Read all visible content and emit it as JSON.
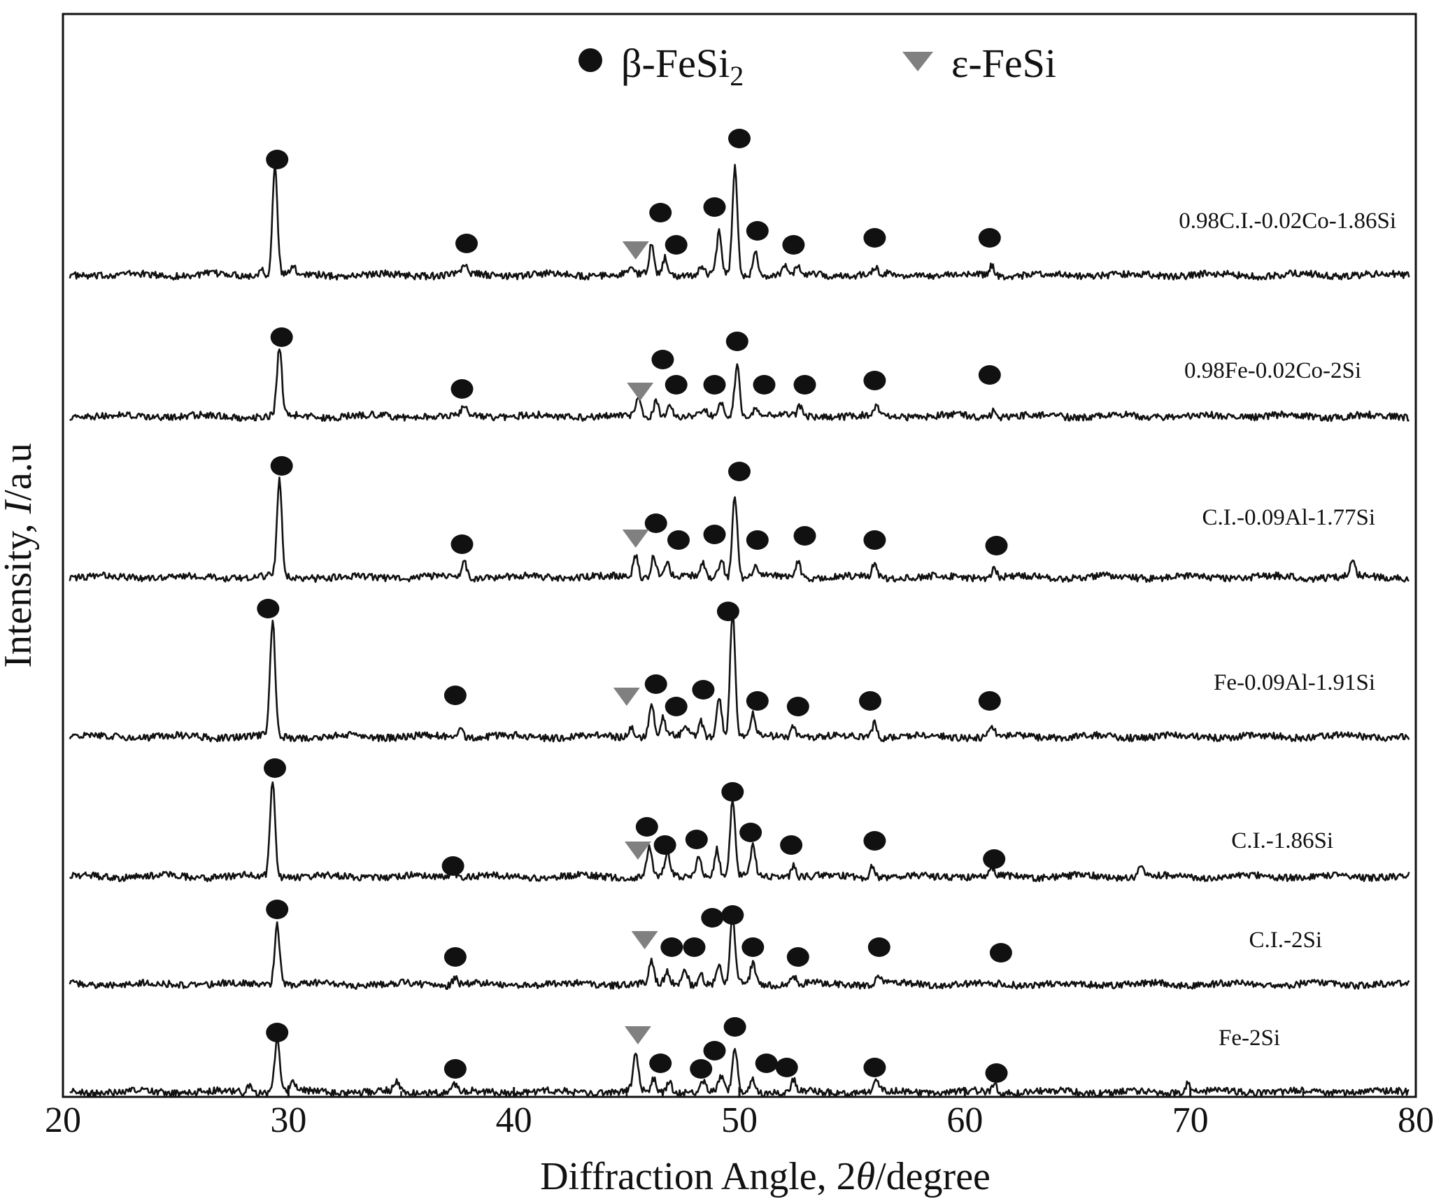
{
  "chart_data": {
    "type": "line",
    "xlabel": {
      "prefix": "Diffraction Angle, 2",
      "symbol": "θ",
      "suffix": "/degree"
    },
    "ylabel": {
      "prefix": "Intensity, ",
      "symbol": "I",
      "suffix": "/a.u"
    },
    "xlim": [
      20,
      80
    ],
    "xticks": [
      "20",
      "30",
      "40",
      "50",
      "60",
      "70",
      "80"
    ],
    "grid": false,
    "y_tick_labels_shown": false,
    "legend": {
      "placement": "top-center",
      "entries": [
        {
          "label": "β-FeSi",
          "subscript": "2",
          "marker": "circle",
          "color": "#111111"
        },
        {
          "label": "ε-FeSi",
          "subscript": "",
          "marker": "triangle-down",
          "color": "#808080"
        }
      ]
    },
    "series": [
      {
        "name": "0.98C.I.-0.02Co-1.86Si",
        "peaks": [
          {
            "x": 28.8,
            "h": 12
          },
          {
            "x": 29.4,
            "h": 156
          },
          {
            "x": 30.2,
            "h": 10
          },
          {
            "x": 37.8,
            "h": 14
          },
          {
            "x": 45.2,
            "h": 8
          },
          {
            "x": 46.1,
            "h": 42
          },
          {
            "x": 46.7,
            "h": 26
          },
          {
            "x": 48.3,
            "h": 12
          },
          {
            "x": 49.1,
            "h": 60
          },
          {
            "x": 49.8,
            "h": 154
          },
          {
            "x": 50.7,
            "h": 34
          },
          {
            "x": 52.0,
            "h": 12
          },
          {
            "x": 52.6,
            "h": 10
          },
          {
            "x": 56.0,
            "h": 10
          },
          {
            "x": 61.2,
            "h": 14
          }
        ],
        "beta_markers": [
          {
            "x": 29.5,
            "h": 168
          },
          {
            "x": 37.9,
            "h": 48
          },
          {
            "x": 46.5,
            "h": 92
          },
          {
            "x": 47.2,
            "h": 46
          },
          {
            "x": 48.9,
            "h": 100
          },
          {
            "x": 50.0,
            "h": 198
          },
          {
            "x": 50.8,
            "h": 66
          },
          {
            "x": 52.4,
            "h": 46
          },
          {
            "x": 56.0,
            "h": 56
          },
          {
            "x": 61.1,
            "h": 56
          }
        ],
        "epsilon_markers": [
          {
            "x": 45.4,
            "h": 38
          }
        ]
      },
      {
        "name": "0.98Fe-0.02Co-2Si",
        "peaks": [
          {
            "x": 29.6,
            "h": 96
          },
          {
            "x": 37.8,
            "h": 12
          },
          {
            "x": 45.5,
            "h": 28
          },
          {
            "x": 46.3,
            "h": 22
          },
          {
            "x": 46.9,
            "h": 18
          },
          {
            "x": 48.4,
            "h": 10
          },
          {
            "x": 49.2,
            "h": 18
          },
          {
            "x": 49.9,
            "h": 76
          },
          {
            "x": 50.7,
            "h": 12
          },
          {
            "x": 52.7,
            "h": 14
          },
          {
            "x": 56.1,
            "h": 12
          },
          {
            "x": 61.3,
            "h": 10
          }
        ],
        "beta_markers": [
          {
            "x": 29.7,
            "h": 116
          },
          {
            "x": 37.7,
            "h": 42
          },
          {
            "x": 46.6,
            "h": 84
          },
          {
            "x": 47.2,
            "h": 48
          },
          {
            "x": 48.9,
            "h": 48
          },
          {
            "x": 49.9,
            "h": 110
          },
          {
            "x": 51.1,
            "h": 48
          },
          {
            "x": 52.9,
            "h": 48
          },
          {
            "x": 56.0,
            "h": 54
          },
          {
            "x": 61.1,
            "h": 62
          }
        ],
        "epsilon_markers": [
          {
            "x": 45.6,
            "h": 38
          }
        ]
      },
      {
        "name": "C.I.-0.09Al-1.77Si",
        "peaks": [
          {
            "x": 29.6,
            "h": 136
          },
          {
            "x": 37.8,
            "h": 22
          },
          {
            "x": 45.4,
            "h": 32
          },
          {
            "x": 46.2,
            "h": 32
          },
          {
            "x": 46.8,
            "h": 22
          },
          {
            "x": 48.4,
            "h": 18
          },
          {
            "x": 49.2,
            "h": 28
          },
          {
            "x": 49.8,
            "h": 118
          },
          {
            "x": 50.7,
            "h": 18
          },
          {
            "x": 52.6,
            "h": 22
          },
          {
            "x": 56.0,
            "h": 18
          },
          {
            "x": 61.3,
            "h": 12
          },
          {
            "x": 77.2,
            "h": 24
          }
        ],
        "beta_markers": [
          {
            "x": 29.7,
            "h": 162
          },
          {
            "x": 37.7,
            "h": 50
          },
          {
            "x": 46.3,
            "h": 80
          },
          {
            "x": 47.3,
            "h": 56
          },
          {
            "x": 48.9,
            "h": 64
          },
          {
            "x": 50.0,
            "h": 154
          },
          {
            "x": 50.8,
            "h": 56
          },
          {
            "x": 52.9,
            "h": 62
          },
          {
            "x": 56.0,
            "h": 56
          },
          {
            "x": 61.4,
            "h": 48
          }
        ],
        "epsilon_markers": [
          {
            "x": 45.4,
            "h": 58
          }
        ]
      },
      {
        "name": "Fe-0.09Al-1.91Si",
        "peaks": [
          {
            "x": 29.3,
            "h": 168
          },
          {
            "x": 37.6,
            "h": 14
          },
          {
            "x": 45.2,
            "h": 14
          },
          {
            "x": 46.1,
            "h": 48
          },
          {
            "x": 46.6,
            "h": 26
          },
          {
            "x": 47.6,
            "h": 16
          },
          {
            "x": 48.3,
            "h": 22
          },
          {
            "x": 49.1,
            "h": 60
          },
          {
            "x": 49.7,
            "h": 180
          },
          {
            "x": 50.6,
            "h": 30
          },
          {
            "x": 52.4,
            "h": 18
          },
          {
            "x": 56.0,
            "h": 20
          },
          {
            "x": 61.2,
            "h": 16
          }
        ],
        "beta_markers": [
          {
            "x": 29.1,
            "h": 186
          },
          {
            "x": 37.4,
            "h": 62
          },
          {
            "x": 46.3,
            "h": 78
          },
          {
            "x": 47.2,
            "h": 46
          },
          {
            "x": 48.4,
            "h": 70
          },
          {
            "x": 49.5,
            "h": 182
          },
          {
            "x": 50.8,
            "h": 54
          },
          {
            "x": 52.6,
            "h": 46
          },
          {
            "x": 55.8,
            "h": 54
          },
          {
            "x": 61.1,
            "h": 54
          }
        ],
        "epsilon_markers": [
          {
            "x": 45.0,
            "h": 60
          }
        ]
      },
      {
        "name": "C.I.-1.86Si",
        "peaks": [
          {
            "x": 29.3,
            "h": 140
          },
          {
            "x": 37.3,
            "h": 14
          },
          {
            "x": 46.0,
            "h": 42
          },
          {
            "x": 46.8,
            "h": 32
          },
          {
            "x": 48.2,
            "h": 28
          },
          {
            "x": 49.0,
            "h": 40
          },
          {
            "x": 49.7,
            "h": 106
          },
          {
            "x": 50.6,
            "h": 42
          },
          {
            "x": 52.4,
            "h": 18
          },
          {
            "x": 55.9,
            "h": 16
          },
          {
            "x": 61.2,
            "h": 12
          },
          {
            "x": 67.8,
            "h": 12
          }
        ],
        "beta_markers": [
          {
            "x": 29.4,
            "h": 158
          },
          {
            "x": 37.3,
            "h": 18
          },
          {
            "x": 45.9,
            "h": 74
          },
          {
            "x": 46.7,
            "h": 48
          },
          {
            "x": 48.1,
            "h": 56
          },
          {
            "x": 49.7,
            "h": 124
          },
          {
            "x": 50.5,
            "h": 66
          },
          {
            "x": 52.3,
            "h": 48
          },
          {
            "x": 56.0,
            "h": 54
          },
          {
            "x": 61.3,
            "h": 28
          }
        ],
        "epsilon_markers": [
          {
            "x": 45.5,
            "h": 40
          }
        ]
      },
      {
        "name": "C.I.-2Si",
        "peaks": [
          {
            "x": 29.5,
            "h": 90
          },
          {
            "x": 37.4,
            "h": 10
          },
          {
            "x": 46.1,
            "h": 30
          },
          {
            "x": 46.8,
            "h": 18
          },
          {
            "x": 47.6,
            "h": 22
          },
          {
            "x": 48.3,
            "h": 14
          },
          {
            "x": 49.1,
            "h": 30
          },
          {
            "x": 49.7,
            "h": 96
          },
          {
            "x": 50.6,
            "h": 30
          },
          {
            "x": 52.4,
            "h": 12
          },
          {
            "x": 56.2,
            "h": 14
          }
        ],
        "beta_markers": [
          {
            "x": 29.5,
            "h": 110
          },
          {
            "x": 37.4,
            "h": 42
          },
          {
            "x": 47.0,
            "h": 56
          },
          {
            "x": 48.0,
            "h": 56
          },
          {
            "x": 48.8,
            "h": 98
          },
          {
            "x": 49.7,
            "h": 102
          },
          {
            "x": 50.6,
            "h": 56
          },
          {
            "x": 52.6,
            "h": 42
          },
          {
            "x": 56.2,
            "h": 56
          },
          {
            "x": 61.6,
            "h": 48
          }
        ],
        "epsilon_markers": [
          {
            "x": 45.8,
            "h": 66
          }
        ]
      },
      {
        "name": "Fe-2Si",
        "peaks": [
          {
            "x": 28.3,
            "h": 10
          },
          {
            "x": 29.5,
            "h": 78
          },
          {
            "x": 30.2,
            "h": 14
          },
          {
            "x": 34.8,
            "h": 14
          },
          {
            "x": 37.4,
            "h": 10
          },
          {
            "x": 45.4,
            "h": 58
          },
          {
            "x": 46.2,
            "h": 18
          },
          {
            "x": 46.9,
            "h": 16
          },
          {
            "x": 48.4,
            "h": 16
          },
          {
            "x": 49.2,
            "h": 22
          },
          {
            "x": 49.8,
            "h": 62
          },
          {
            "x": 50.6,
            "h": 20
          },
          {
            "x": 52.4,
            "h": 16
          },
          {
            "x": 56.1,
            "h": 16
          },
          {
            "x": 61.3,
            "h": 12
          },
          {
            "x": 69.9,
            "h": 14
          }
        ],
        "beta_markers": [
          {
            "x": 29.5,
            "h": 88
          },
          {
            "x": 37.4,
            "h": 36
          },
          {
            "x": 46.5,
            "h": 44
          },
          {
            "x": 48.3,
            "h": 36
          },
          {
            "x": 48.9,
            "h": 62
          },
          {
            "x": 49.8,
            "h": 96
          },
          {
            "x": 51.2,
            "h": 44
          },
          {
            "x": 52.1,
            "h": 38
          },
          {
            "x": 56.0,
            "h": 38
          },
          {
            "x": 61.4,
            "h": 30
          }
        ],
        "epsilon_markers": [
          {
            "x": 45.5,
            "h": 84
          }
        ]
      }
    ]
  }
}
